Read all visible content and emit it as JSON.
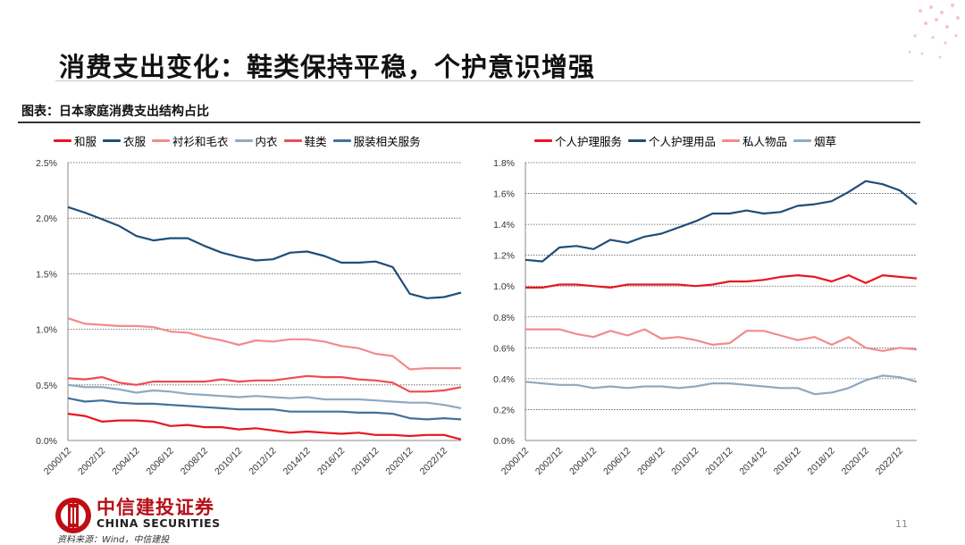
{
  "header": {
    "title": "消费支出变化：鞋类保持平稳，个护意识增强",
    "caption": "图表：日本家庭消费支出结构占比"
  },
  "footer": {
    "logo_cn": "中信建投证券",
    "logo_en": "CHINA SECURITIES",
    "source": "资料来源：Wind，中信建投",
    "page_number": "11"
  },
  "chart_data": [
    {
      "type": "line",
      "x": [
        "2000/12",
        "2001/12",
        "2002/12",
        "2003/12",
        "2004/12",
        "2005/12",
        "2006/12",
        "2007/12",
        "2008/12",
        "2009/12",
        "2010/12",
        "2011/12",
        "2012/12",
        "2013/12",
        "2014/12",
        "2015/12",
        "2016/12",
        "2017/12",
        "2018/12",
        "2019/12",
        "2020/12",
        "2021/12",
        "2022/12",
        "2023/12"
      ],
      "tick_labels": [
        "2000/12",
        "2002/12",
        "2004/12",
        "2006/12",
        "2008/12",
        "2010/12",
        "2012/12",
        "2014/12",
        "2016/12",
        "2018/12",
        "2020/12",
        "2022/12"
      ],
      "ylim": [
        0,
        0.025
      ],
      "yticks": [
        0,
        0.005,
        0.01,
        0.015,
        0.02,
        0.025
      ],
      "ytick_labels": [
        "0.0%",
        "0.5%",
        "1.0%",
        "1.5%",
        "2.0%",
        "2.5%"
      ],
      "series": [
        {
          "name": "和服",
          "color": "#e8161f",
          "values": [
            0.0024,
            0.0022,
            0.0017,
            0.0018,
            0.0018,
            0.0017,
            0.0013,
            0.0014,
            0.0012,
            0.0012,
            0.001,
            0.0011,
            0.0009,
            0.0007,
            0.0008,
            0.0007,
            0.0006,
            0.0007,
            0.0005,
            0.0005,
            0.0004,
            0.0005,
            0.0005,
            0.0001
          ]
        },
        {
          "name": "衣服",
          "color": "#1f4e79",
          "values": [
            0.021,
            0.0205,
            0.0199,
            0.0193,
            0.0184,
            0.018,
            0.0182,
            0.0182,
            0.0175,
            0.0169,
            0.0165,
            0.0162,
            0.0163,
            0.0169,
            0.017,
            0.0166,
            0.016,
            0.016,
            0.0161,
            0.0156,
            0.0132,
            0.0128,
            0.0129,
            0.0133
          ]
        },
        {
          "name": "衬衫和毛衣",
          "color": "#f28b8b",
          "values": [
            0.011,
            0.0105,
            0.0104,
            0.0103,
            0.0103,
            0.0102,
            0.0098,
            0.0097,
            0.0093,
            0.009,
            0.0086,
            0.009,
            0.0089,
            0.0091,
            0.0091,
            0.0089,
            0.0085,
            0.0083,
            0.0078,
            0.0076,
            0.0064,
            0.0065,
            0.0065,
            0.0065
          ]
        },
        {
          "name": "内衣",
          "color": "#8fa9c0",
          "values": [
            0.005,
            0.0048,
            0.0048,
            0.0046,
            0.0043,
            0.0045,
            0.0044,
            0.0042,
            0.0041,
            0.004,
            0.0039,
            0.004,
            0.0039,
            0.0038,
            0.0039,
            0.0037,
            0.0037,
            0.0037,
            0.0036,
            0.0035,
            0.0034,
            0.0034,
            0.0032,
            0.0029
          ]
        },
        {
          "name": "鞋类",
          "color": "#ef4b52",
          "values": [
            0.0056,
            0.0055,
            0.0057,
            0.0052,
            0.005,
            0.0053,
            0.0053,
            0.0053,
            0.0053,
            0.0055,
            0.0053,
            0.0054,
            0.0054,
            0.0056,
            0.0058,
            0.0057,
            0.0057,
            0.0055,
            0.0054,
            0.0052,
            0.0044,
            0.0044,
            0.0045,
            0.0048
          ]
        },
        {
          "name": "服装相关服务",
          "color": "#41719c",
          "values": [
            0.0038,
            0.0035,
            0.0036,
            0.0034,
            0.0033,
            0.0033,
            0.0032,
            0.0031,
            0.003,
            0.0029,
            0.0028,
            0.0028,
            0.0028,
            0.0026,
            0.0026,
            0.0026,
            0.0026,
            0.0025,
            0.0025,
            0.0024,
            0.002,
            0.0019,
            0.002,
            0.0019
          ]
        }
      ]
    },
    {
      "type": "line",
      "x": [
        "2000/12",
        "2001/12",
        "2002/12",
        "2003/12",
        "2004/12",
        "2005/12",
        "2006/12",
        "2007/12",
        "2008/12",
        "2009/12",
        "2010/12",
        "2011/12",
        "2012/12",
        "2013/12",
        "2014/12",
        "2015/12",
        "2016/12",
        "2017/12",
        "2018/12",
        "2019/12",
        "2020/12",
        "2021/12",
        "2022/12",
        "2023/12"
      ],
      "tick_labels": [
        "2000/12",
        "2002/12",
        "2004/12",
        "2006/12",
        "2008/12",
        "2010/12",
        "2012/12",
        "2014/12",
        "2016/12",
        "2018/12",
        "2020/12",
        "2022/12"
      ],
      "ylim": [
        0,
        0.018
      ],
      "yticks": [
        0,
        0.002,
        0.004,
        0.006,
        0.008,
        0.01,
        0.012,
        0.014,
        0.016,
        0.018
      ],
      "ytick_labels": [
        "0.0%",
        "0.2%",
        "0.4%",
        "0.6%",
        "0.8%",
        "1.0%",
        "1.2%",
        "1.4%",
        "1.6%",
        "1.8%"
      ],
      "series": [
        {
          "name": "个人护理服务",
          "color": "#e8161f",
          "values": [
            0.0099,
            0.0099,
            0.0101,
            0.0101,
            0.01,
            0.0099,
            0.0101,
            0.0101,
            0.0101,
            0.0101,
            0.01,
            0.0101,
            0.0103,
            0.0103,
            0.0104,
            0.0106,
            0.0107,
            0.0106,
            0.0103,
            0.0107,
            0.0102,
            0.0107,
            0.0106,
            0.0105
          ]
        },
        {
          "name": "个人护理用品",
          "color": "#1f4e79",
          "values": [
            0.0117,
            0.0116,
            0.0125,
            0.0126,
            0.0124,
            0.013,
            0.0128,
            0.0132,
            0.0134,
            0.0138,
            0.0142,
            0.0147,
            0.0147,
            0.0149,
            0.0147,
            0.0148,
            0.0152,
            0.0153,
            0.0155,
            0.0161,
            0.0168,
            0.0166,
            0.0162,
            0.0153
          ]
        },
        {
          "name": "私人物品",
          "color": "#f28b8b",
          "values": [
            0.0072,
            0.0072,
            0.0072,
            0.0069,
            0.0067,
            0.0071,
            0.0068,
            0.0072,
            0.0066,
            0.0067,
            0.0065,
            0.0062,
            0.0063,
            0.0071,
            0.0071,
            0.0068,
            0.0065,
            0.0067,
            0.0062,
            0.0067,
            0.006,
            0.0058,
            0.006,
            0.0059
          ]
        },
        {
          "name": "烟草",
          "color": "#8fa9c0",
          "values": [
            0.0038,
            0.0037,
            0.0036,
            0.0036,
            0.0034,
            0.0035,
            0.0034,
            0.0035,
            0.0035,
            0.0034,
            0.0035,
            0.0037,
            0.0037,
            0.0036,
            0.0035,
            0.0034,
            0.0034,
            0.003,
            0.0031,
            0.0034,
            0.0039,
            0.0042,
            0.0041,
            0.0038
          ]
        }
      ]
    }
  ]
}
